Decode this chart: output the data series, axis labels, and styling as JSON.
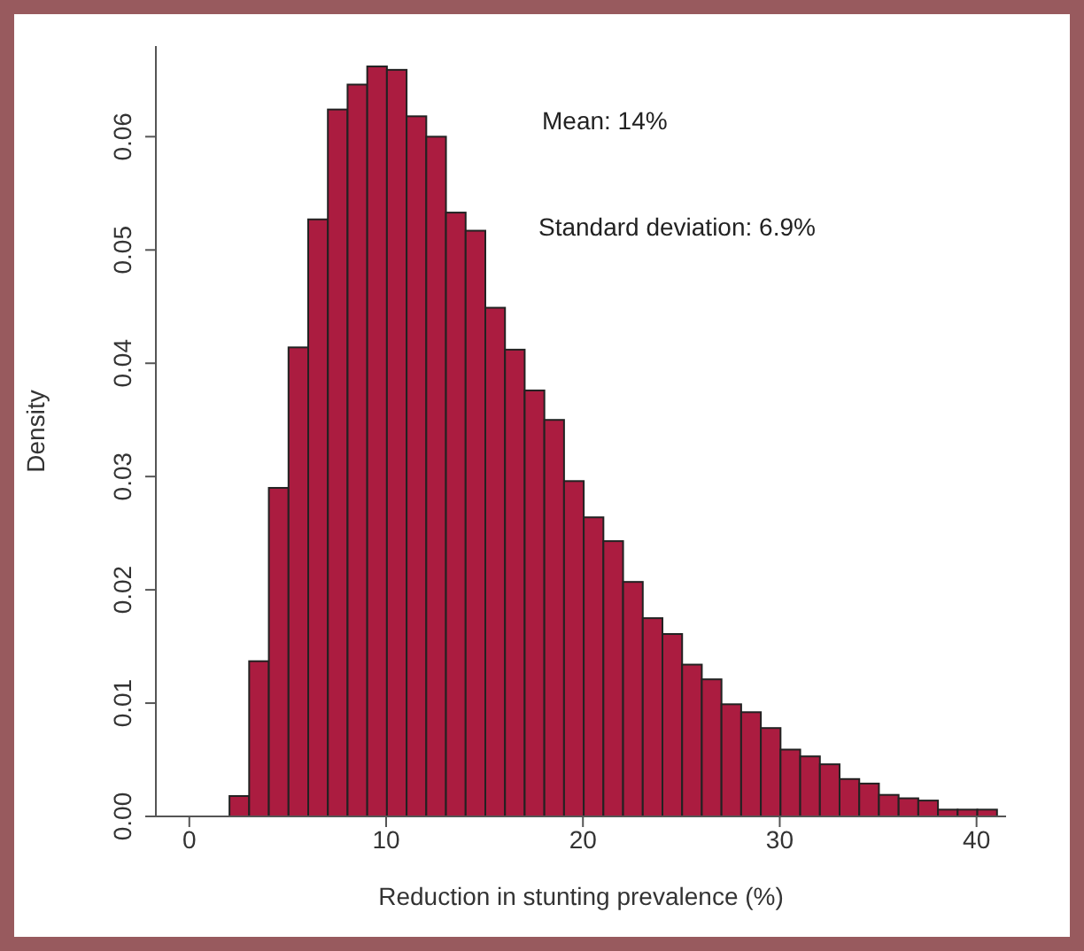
{
  "chart_data": {
    "type": "histogram",
    "xlabel": "Reduction in stunting prevalence (%)",
    "ylabel": "Density",
    "annotations": [
      "Mean: 14%",
      "Standard deviation: 6.9%"
    ],
    "bins": [
      2,
      3,
      4,
      5,
      6,
      7,
      8,
      9,
      10,
      11,
      12,
      13,
      14,
      15,
      16,
      17,
      18,
      19,
      20,
      21,
      22,
      23,
      24,
      25,
      26,
      27,
      28,
      29,
      30,
      31,
      32,
      33,
      34,
      35,
      36,
      37,
      38,
      39,
      40,
      41
    ],
    "values": [
      0.0018,
      0.0137,
      0.029,
      0.0414,
      0.0527,
      0.0624,
      0.0646,
      0.0662,
      0.0659,
      0.0618,
      0.06,
      0.0533,
      0.0517,
      0.0449,
      0.0412,
      0.0376,
      0.035,
      0.0296,
      0.0264,
      0.0243,
      0.0207,
      0.0175,
      0.0161,
      0.0134,
      0.0121,
      0.0099,
      0.0092,
      0.0078,
      0.0059,
      0.0053,
      0.0046,
      0.0033,
      0.0029,
      0.0019,
      0.0016,
      0.0014,
      0.0006,
      0.0006,
      0.0006
    ],
    "color": "#ab1c40",
    "xlim": [
      -1.7,
      41.5
    ],
    "xticks": [
      0,
      10,
      20,
      30,
      40
    ],
    "ylim": [
      0,
      0.068
    ],
    "yticks": [
      {
        "value": 0,
        "label": "0.00"
      },
      {
        "value": 0.01,
        "label": "0.01"
      },
      {
        "value": 0.02,
        "label": "0.02"
      },
      {
        "value": 0.03,
        "label": "0.03"
      },
      {
        "value": 0.04,
        "label": "0.04"
      },
      {
        "value": 0.05,
        "label": "0.05"
      },
      {
        "value": 0.06,
        "label": "0.06"
      }
    ],
    "grid": false
  }
}
